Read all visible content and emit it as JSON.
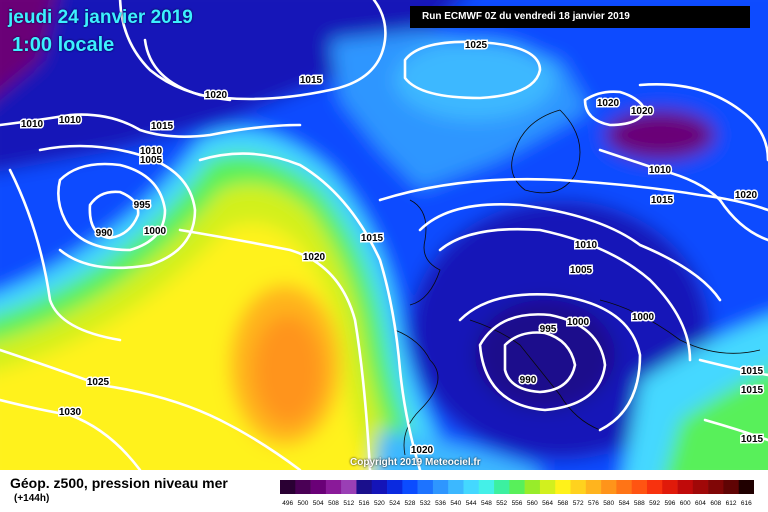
{
  "header": {
    "date": "jeudi 24 janvier 2019",
    "local_time": "1:00 locale",
    "run": "Run ECMWF 0Z du vendredi 18 janvier 2019"
  },
  "copyright": "Copyright 2019 Meteociel.fr",
  "legend": {
    "title": "Géop. z500, pression niveau mer",
    "subtitle": "(+144h)",
    "scale": [
      {
        "label": "496",
        "color": "#2a0033"
      },
      {
        "label": "500",
        "color": "#4a0055"
      },
      {
        "label": "504",
        "color": "#6a0077"
      },
      {
        "label": "508",
        "color": "#8a1a99"
      },
      {
        "label": "512",
        "color": "#9a3fb5"
      },
      {
        "label": "516",
        "color": "#1a0f8c"
      },
      {
        "label": "520",
        "color": "#1414b8"
      },
      {
        "label": "524",
        "color": "#0a2ae0"
      },
      {
        "label": "528",
        "color": "#0b4cff"
      },
      {
        "label": "532",
        "color": "#1d73ff"
      },
      {
        "label": "536",
        "color": "#2e96ff"
      },
      {
        "label": "540",
        "color": "#3cb8ff"
      },
      {
        "label": "544",
        "color": "#44d8ff"
      },
      {
        "label": "548",
        "color": "#44f0e8"
      },
      {
        "label": "552",
        "color": "#3cf0a0"
      },
      {
        "label": "556",
        "color": "#58f05a"
      },
      {
        "label": "560",
        "color": "#98ec2a"
      },
      {
        "label": "564",
        "color": "#d2f01e"
      },
      {
        "label": "568",
        "color": "#fff21a"
      },
      {
        "label": "572",
        "color": "#ffd21e"
      },
      {
        "label": "576",
        "color": "#ffb41e"
      },
      {
        "label": "580",
        "color": "#ff941a"
      },
      {
        "label": "584",
        "color": "#ff7416"
      },
      {
        "label": "588",
        "color": "#ff5412"
      },
      {
        "label": "592",
        "color": "#f8320e"
      },
      {
        "label": "596",
        "color": "#e01a0a"
      },
      {
        "label": "600",
        "color": "#c00a0a"
      },
      {
        "label": "604",
        "color": "#a00808"
      },
      {
        "label": "608",
        "color": "#800606"
      },
      {
        "label": "612",
        "color": "#600404"
      },
      {
        "label": "616",
        "color": "#200000"
      }
    ]
  },
  "isobar_labels": [
    {
      "text": "1025",
      "pos": [
        476,
        48
      ]
    },
    {
      "text": "1015",
      "pos": [
        311,
        83
      ]
    },
    {
      "text": "1020",
      "pos": [
        216,
        98
      ]
    },
    {
      "text": "1010",
      "pos": [
        32,
        127
      ]
    },
    {
      "text": "1010",
      "pos": [
        70,
        123
      ]
    },
    {
      "text": "1015",
      "pos": [
        162,
        129
      ]
    },
    {
      "text": "1010",
      "pos": [
        151,
        154
      ]
    },
    {
      "text": "1005",
      "pos": [
        151,
        163
      ]
    },
    {
      "text": "995",
      "pos": [
        142,
        208
      ]
    },
    {
      "text": "990",
      "pos": [
        104,
        236
      ]
    },
    {
      "text": "1000",
      "pos": [
        155,
        234
      ]
    },
    {
      "text": "1015",
      "pos": [
        372,
        241
      ]
    },
    {
      "text": "1020",
      "pos": [
        314,
        260
      ]
    },
    {
      "text": "1020",
      "pos": [
        608,
        106
      ]
    },
    {
      "text": "1020",
      "pos": [
        642,
        114
      ]
    },
    {
      "text": "1010",
      "pos": [
        660,
        173
      ]
    },
    {
      "text": "1015",
      "pos": [
        662,
        203
      ]
    },
    {
      "text": "1020",
      "pos": [
        746,
        198
      ]
    },
    {
      "text": "1010",
      "pos": [
        586,
        248
      ]
    },
    {
      "text": "1005",
      "pos": [
        581,
        273
      ]
    },
    {
      "text": "1000",
      "pos": [
        578,
        325
      ]
    },
    {
      "text": "1000",
      "pos": [
        643,
        320
      ]
    },
    {
      "text": "995",
      "pos": [
        548,
        332
      ]
    },
    {
      "text": "990",
      "pos": [
        528,
        383
      ]
    },
    {
      "text": "1025",
      "pos": [
        98,
        385
      ]
    },
    {
      "text": "1030",
      "pos": [
        70,
        415
      ]
    },
    {
      "text": "1015",
      "pos": [
        752,
        374
      ]
    },
    {
      "text": "1015",
      "pos": [
        752,
        393
      ]
    },
    {
      "text": "1015",
      "pos": [
        752,
        442
      ]
    },
    {
      "text": "1020",
      "pos": [
        422,
        453
      ]
    }
  ]
}
